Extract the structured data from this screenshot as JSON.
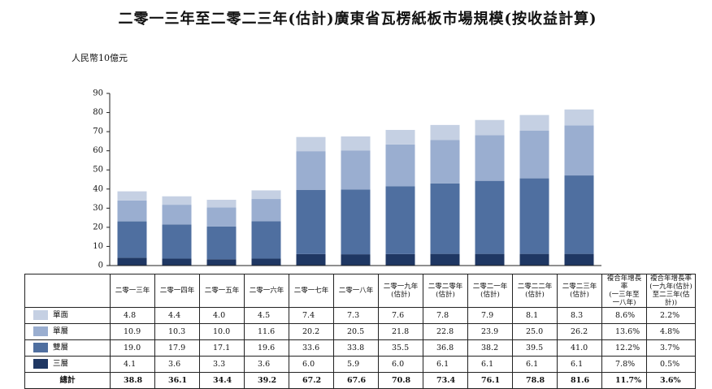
{
  "chart_data": {
    "type": "stacked_bar",
    "title": "二零一三年至二零二三年(估計)廣東省瓦楞紙板市場規模(按收益計算)",
    "y_label": "人民幣10億元",
    "categories": [
      "二零一三年",
      "二零一四年",
      "二零一五年",
      "二零一六年",
      "二零一七年",
      "二零一八年",
      "二零一九年\n(估計)",
      "二零二零年\n(估計)",
      "二零二一年\n(估計)",
      "二零二二年\n(估計)",
      "二零二三年\n(估計)"
    ],
    "ylim": [
      0,
      90
    ],
    "yticks": [
      0,
      10,
      20,
      30,
      40,
      50,
      60,
      70,
      80,
      90
    ],
    "series": [
      {
        "name": "單面",
        "color": "#c5d0e3",
        "values": [
          4.8,
          4.4,
          4.0,
          4.5,
          7.4,
          7.3,
          7.6,
          7.8,
          7.9,
          8.1,
          8.3
        ],
        "value_labels": [
          "4.8",
          "4.4",
          "4.0",
          "4.5",
          "7.4",
          "7.3",
          "7.6",
          "7.8",
          "7.9",
          "8.1",
          "8.3"
        ],
        "cagr": [
          "8.6%",
          "2.2%"
        ]
      },
      {
        "name": "單層",
        "color": "#9aaed0",
        "values": [
          10.9,
          10.3,
          10.0,
          11.6,
          20.2,
          20.5,
          21.8,
          22.8,
          23.9,
          25.0,
          26.2
        ],
        "value_labels": [
          "10.9",
          "10.3",
          "10.0",
          "11.6",
          "20.2",
          "20.5",
          "21.8",
          "22.8",
          "23.9",
          "25.0",
          "26.2"
        ],
        "cagr": [
          "13.6%",
          "4.8%"
        ]
      },
      {
        "name": "雙層",
        "color": "#4f6fa0",
        "values": [
          19.0,
          17.9,
          17.1,
          19.6,
          33.6,
          33.8,
          35.5,
          36.8,
          38.2,
          39.5,
          41.0
        ],
        "value_labels": [
          "19.0",
          "17.9",
          "17.1",
          "19.6",
          "33.6",
          "33.8",
          "35.5",
          "36.8",
          "38.2",
          "39.5",
          "41.0"
        ],
        "cagr": [
          "12.2%",
          "3.7%"
        ]
      },
      {
        "name": "三層",
        "color": "#1f3763",
        "values": [
          4.1,
          3.6,
          3.3,
          3.6,
          6.0,
          5.9,
          6.0,
          6.1,
          6.1,
          6.1,
          6.1
        ],
        "value_labels": [
          "4.1",
          "3.6",
          "3.3",
          "3.6",
          "6.0",
          "5.9",
          "6.0",
          "6.1",
          "6.1",
          "6.1",
          "6.1"
        ],
        "cagr": [
          "7.8%",
          "0.5%"
        ]
      }
    ],
    "cagr_headers": [
      "複合年增長率\n(一三年至\n一八年)",
      "複合年增長率\n(一九年(估計)\n至二三年(估計))"
    ],
    "total_name": "總計",
    "totals": [
      38.8,
      36.1,
      34.4,
      39.2,
      67.2,
      67.6,
      70.8,
      73.4,
      76.1,
      78.8,
      81.6
    ],
    "total_cagr": [
      "11.7%",
      "3.6%"
    ]
  }
}
